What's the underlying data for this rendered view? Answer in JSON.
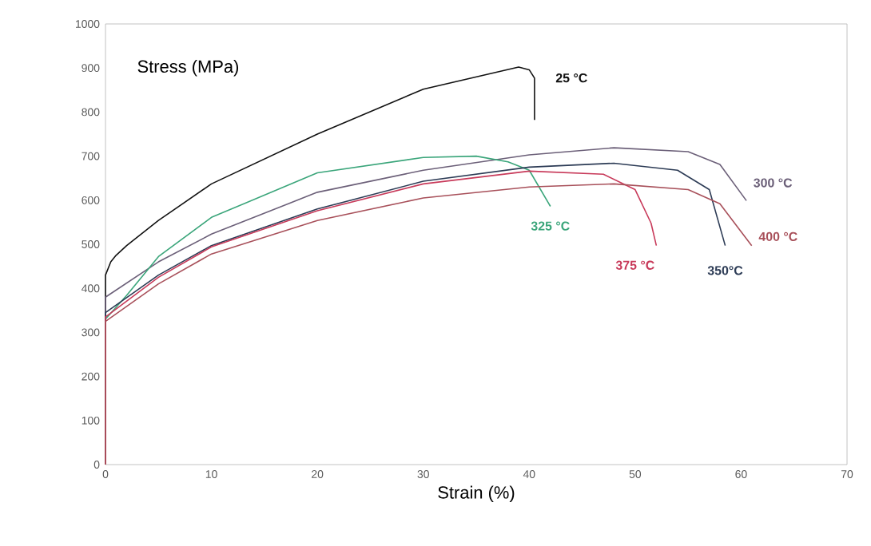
{
  "chart_data": {
    "type": "line",
    "xlabel": "Strain (%)",
    "ylabel": "Stress (MPa)",
    "xlim": [
      0,
      70
    ],
    "ylim": [
      0,
      1000
    ],
    "xticks": [
      0,
      10,
      20,
      30,
      40,
      50,
      60,
      70
    ],
    "yticks": [
      0,
      100,
      200,
      300,
      400,
      500,
      600,
      700,
      800,
      900,
      1000
    ],
    "grid": false,
    "marker": "none",
    "line_style": "solid",
    "series": [
      {
        "name": "25 °C",
        "color": "#111111",
        "x": [
          0,
          0,
          0.5,
          1,
          2,
          5,
          10,
          20,
          30,
          39,
          40,
          40.5,
          40.5
        ],
        "values": [
          0,
          430,
          460,
          475,
          497,
          554,
          637,
          750,
          852,
          902,
          896,
          877,
          782
        ]
      },
      {
        "name": "300 °C",
        "color": "#6b5f78",
        "x": [
          0,
          0,
          5,
          10,
          20,
          30,
          40,
          48,
          55,
          58,
          60.5
        ],
        "values": [
          0,
          380,
          460,
          523,
          618,
          668,
          703,
          719,
          710,
          681,
          599
        ]
      },
      {
        "name": "325 °C",
        "color": "#3aa57a",
        "x": [
          0,
          0,
          2,
          5,
          10,
          20,
          30,
          35,
          38,
          40,
          42
        ],
        "values": [
          0,
          330,
          384,
          472,
          561,
          662,
          697,
          700,
          687,
          668,
          586
        ]
      },
      {
        "name": "350°C",
        "color": "#2c3b55",
        "x": [
          0,
          0,
          5,
          10,
          20,
          30,
          40,
          48,
          54,
          57,
          58.5
        ],
        "values": [
          0,
          345,
          430,
          497,
          580,
          643,
          675,
          684,
          668,
          624,
          497
        ]
      },
      {
        "name": "375 °C",
        "color": "#c83a5a",
        "x": [
          0,
          0,
          5,
          10,
          20,
          30,
          40,
          47,
          50,
          51.5,
          52
        ],
        "values": [
          0,
          335,
          425,
          494,
          576,
          637,
          666,
          659,
          624,
          548,
          497
        ]
      },
      {
        "name": "400 °C",
        "color": "#a8505a",
        "x": [
          0,
          0,
          5,
          10,
          20,
          30,
          40,
          48,
          55,
          58,
          61
        ],
        "values": [
          0,
          325,
          410,
          478,
          554,
          605,
          630,
          637,
          624,
          592,
          497
        ]
      }
    ]
  }
}
